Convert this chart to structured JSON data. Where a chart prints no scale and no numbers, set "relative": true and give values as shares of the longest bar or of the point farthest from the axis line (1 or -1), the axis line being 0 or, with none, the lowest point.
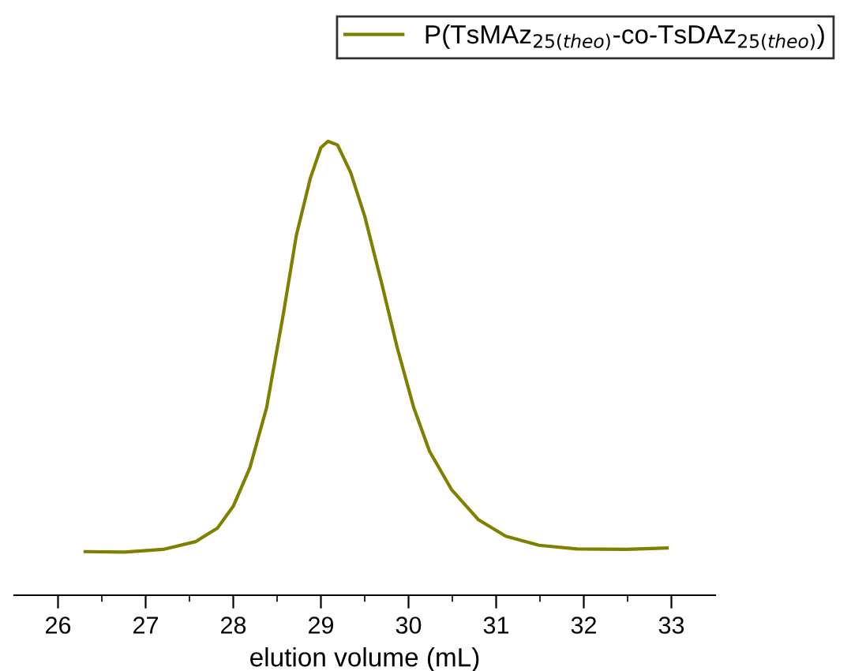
{
  "chart_data": {
    "type": "line",
    "xlabel": "elution volume (mL)",
    "relative": true,
    "legend": "top right",
    "grid": false,
    "marker": "none",
    "line_style": "solid",
    "xlim": [
      25.5,
      33.5
    ],
    "xticks": [
      26,
      {
        "value": 26.5,
        "label": null
      },
      27,
      {
        "value": 27.5,
        "label": null
      },
      28,
      {
        "value": 28.5,
        "label": null
      },
      29,
      {
        "value": 29.5,
        "label": null
      },
      30,
      {
        "value": 30.5,
        "label": null
      },
      31,
      {
        "value": 31.5,
        "label": null
      },
      32,
      {
        "value": 32.5,
        "label": null
      },
      33
    ],
    "series": [
      {
        "name": "P(TsMAz$_{25(theo)}$-co-TsDAz$_{25(theo)}$)",
        "color": "#808000",
        "x": [
          26.31,
          26.76,
          27.2,
          27.57,
          27.82,
          28.0,
          28.19,
          28.38,
          28.57,
          28.72,
          28.88,
          29.0,
          29.08,
          29.19,
          29.34,
          29.5,
          29.69,
          29.87,
          30.06,
          30.24,
          30.49,
          30.8,
          31.11,
          31.49,
          31.92,
          32.48,
          32.95
        ],
        "values": [
          0.096,
          0.095,
          0.101,
          0.118,
          0.148,
          0.196,
          0.281,
          0.413,
          0.618,
          0.793,
          0.919,
          0.986,
          1.0,
          0.992,
          0.931,
          0.835,
          0.69,
          0.546,
          0.413,
          0.317,
          0.233,
          0.166,
          0.13,
          0.11,
          0.102,
          0.101,
          0.104
        ]
      }
    ]
  }
}
